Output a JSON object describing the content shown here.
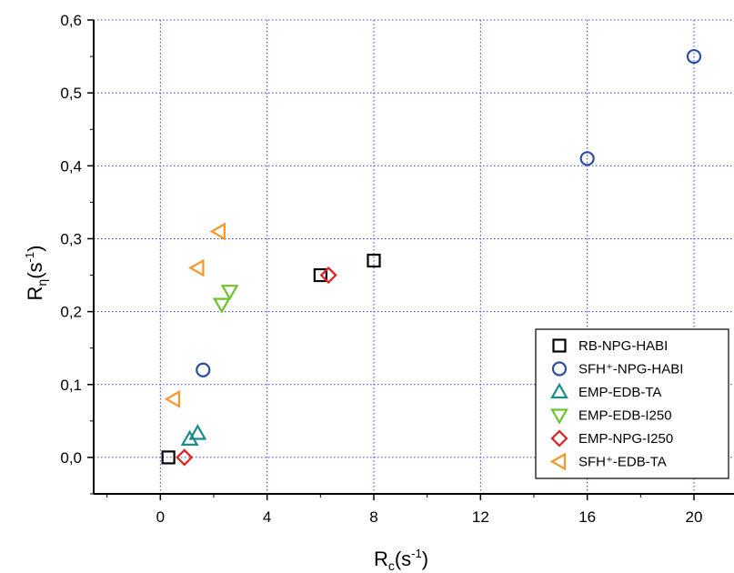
{
  "chart_data": {
    "type": "scatter",
    "xlabel": {
      "main": "R",
      "sub": "c",
      "unit_open": "(s",
      "unit_sup": "-1",
      "unit_close": ")"
    },
    "ylabel": {
      "main": "R",
      "sub": "η",
      "unit_open": "(s",
      "unit_sup": "-1",
      "unit_close": ")"
    },
    "xlim": [
      -2.5,
      21.5
    ],
    "ylim": [
      -0.05,
      0.6
    ],
    "x_ticks": [
      0,
      4,
      8,
      12,
      16,
      20
    ],
    "x_tick_labels": [
      "0",
      "4",
      "8",
      "12",
      "16",
      "20"
    ],
    "y_ticks": [
      0.0,
      0.1,
      0.2,
      0.3,
      0.4,
      0.5,
      0.6
    ],
    "y_tick_labels": [
      "0,0",
      "0,1",
      "0,2",
      "0,3",
      "0,4",
      "0,5",
      "0,6"
    ],
    "grid": true,
    "legend_position": "bottom-right",
    "series": [
      {
        "name": "RB-NPG-HABI",
        "marker": "square",
        "color": "#000000",
        "points": [
          {
            "x": 0.3,
            "y": 0.0
          },
          {
            "x": 6.0,
            "y": 0.25
          },
          {
            "x": 8.0,
            "y": 0.27
          }
        ]
      },
      {
        "name": "SFH⁺-NPG-HABI",
        "marker": "circle",
        "color": "#2a4ea3",
        "points": [
          {
            "x": 1.6,
            "y": 0.12
          },
          {
            "x": 16.0,
            "y": 0.41
          },
          {
            "x": 20.0,
            "y": 0.55
          }
        ]
      },
      {
        "name": "EMP-EDB-TA",
        "marker": "triangle-up",
        "color": "#1a8a8a",
        "points": [
          {
            "x": 1.1,
            "y": 0.025
          },
          {
            "x": 1.4,
            "y": 0.033
          }
        ]
      },
      {
        "name": "EMP-EDB-I250",
        "marker": "triangle-down",
        "color": "#6cc52a",
        "points": [
          {
            "x": 2.3,
            "y": 0.21
          },
          {
            "x": 2.6,
            "y": 0.228
          }
        ]
      },
      {
        "name": "EMP-NPG-I250",
        "marker": "diamond",
        "color": "#e02020",
        "points": [
          {
            "x": 0.9,
            "y": 0.0
          },
          {
            "x": 6.3,
            "y": 0.25
          }
        ]
      },
      {
        "name": "SFH⁺-EDB-TA",
        "marker": "triangle-left",
        "color": "#f5962a",
        "points": [
          {
            "x": 0.5,
            "y": 0.08
          },
          {
            "x": 1.4,
            "y": 0.26
          },
          {
            "x": 2.2,
            "y": 0.31
          }
        ]
      }
    ]
  }
}
